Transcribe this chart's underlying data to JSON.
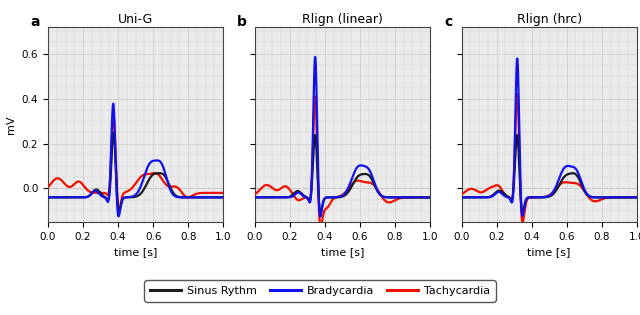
{
  "titles": [
    "Uni-G",
    "Rlign (linear)",
    "Rlign (hrc)"
  ],
  "panel_labels": [
    "a",
    "b",
    "c"
  ],
  "ylabel": "mV",
  "xlabel": "time [s]",
  "xlim": [
    0.0,
    1.0
  ],
  "ylim": [
    -0.15,
    0.72
  ],
  "yticks": [
    0.0,
    0.2,
    0.4,
    0.6
  ],
  "xticks": [
    0.0,
    0.2,
    0.4,
    0.6,
    0.8,
    1.0
  ],
  "colors": {
    "sinus": "#1a1a1a",
    "brady": "#1111ee",
    "tachy": "#ee1100"
  },
  "legend_labels": [
    "Sinus Rythm",
    "Bradycardia",
    "Tachycardia"
  ],
  "legend_colors": [
    "#1a1a1a",
    "#1111ee",
    "#ee1100"
  ],
  "grid_color": "#d0d0d0",
  "background_color": "#ebebeb",
  "zero_line_color": "#aaaaaa",
  "title_fontsize": 9,
  "label_fontsize": 8,
  "tick_fontsize": 7.5,
  "legend_fontsize": 8,
  "line_width": 1.6
}
